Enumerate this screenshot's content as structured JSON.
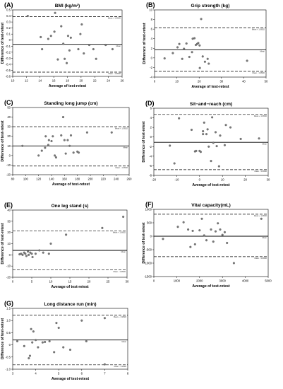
{
  "chart_data": [
    {
      "type": "scatter",
      "panel_label": "(A)",
      "title": "BMI (kg/m²)",
      "xlabel": "Average of test-retest",
      "ylabel": "Difference of test-retest",
      "xlim": [
        10,
        26
      ],
      "ylim": [
        -0.6,
        0.5
      ],
      "xticks": [
        10,
        12,
        14,
        16,
        18,
        20,
        22,
        24,
        26
      ],
      "yticks": [
        -0.6,
        -0.5,
        -0.4,
        -0.3,
        -0.2,
        -0.1,
        0,
        0.1,
        0.2,
        0.3,
        0.4,
        0.5
      ],
      "ytick_labels": [
        "-0.6",
        "-0.5",
        "-0.4",
        "-0.3",
        "-0.2",
        "-0.1",
        "0",
        "0.1",
        "0.2",
        "0.3",
        "0.4",
        "0.5"
      ],
      "mean": -0.07,
      "upper_loa": 0.39,
      "lower_loa": -0.53,
      "line_labels": {
        "mean": "Mean",
        "upper": "Mean + 1.96SD",
        "lower": "Mean - 1.96SD"
      },
      "grid": false,
      "points": [
        [
          12.2,
          0.4
        ],
        [
          14.1,
          0.05
        ],
        [
          14.3,
          -0.15
        ],
        [
          15.2,
          0.02
        ],
        [
          15.6,
          0.07
        ],
        [
          16.1,
          0.14
        ],
        [
          16.2,
          0.45
        ],
        [
          16.6,
          -0.32
        ],
        [
          17.1,
          0.23
        ],
        [
          17.4,
          -0.06
        ],
        [
          17.6,
          -0.31
        ],
        [
          17.9,
          -0.38
        ],
        [
          18.1,
          0.07
        ],
        [
          18.3,
          -0.17
        ],
        [
          18.5,
          0.04
        ],
        [
          19.6,
          -0.15
        ],
        [
          19.9,
          0.1
        ],
        [
          20.1,
          0.26
        ],
        [
          20.4,
          -0.22
        ],
        [
          21.2,
          -0.08
        ],
        [
          21.8,
          -0.15
        ],
        [
          22.2,
          -0.31
        ],
        [
          23.6,
          -0.08
        ],
        [
          24.6,
          -0.15
        ]
      ]
    },
    {
      "type": "scatter",
      "panel_label": "(B)",
      "title": "Grip strength (kg)",
      "xlabel": "Average of test-retest",
      "ylabel": "Difference of test-retest",
      "xlim": [
        0,
        50
      ],
      "ylim": [
        -4,
        10
      ],
      "xticks": [
        0,
        10,
        20,
        30,
        40,
        50
      ],
      "yticks": [
        -4,
        -2,
        0,
        2,
        4,
        6,
        8,
        10
      ],
      "ytick_labels": [
        "-4",
        "-2",
        "0",
        "2",
        "4",
        "6",
        "8",
        "10"
      ],
      "mean": 1.7,
      "upper_loa": 6.3,
      "lower_loa": -2.8,
      "line_labels": {
        "mean": "Mean",
        "upper": "Mean + 1.96SD",
        "lower": "Mean - 1.96SD"
      },
      "grid": false,
      "points": [
        [
          4.5,
          -0.1
        ],
        [
          8.2,
          1.0
        ],
        [
          10.3,
          2.2
        ],
        [
          11.1,
          2.9
        ],
        [
          12.4,
          -0.2
        ],
        [
          13.2,
          1.9
        ],
        [
          14.3,
          3.0
        ],
        [
          15.6,
          0.2
        ],
        [
          16.8,
          1.2
        ],
        [
          17.1,
          4.0
        ],
        [
          17.9,
          4.1
        ],
        [
          18.5,
          2.7
        ],
        [
          19.1,
          2.9
        ],
        [
          19.6,
          3.1
        ],
        [
          20.2,
          2.6
        ],
        [
          20.3,
          -2.1
        ],
        [
          20.9,
          8.1
        ],
        [
          21.6,
          0.3
        ],
        [
          22.6,
          -0.8
        ],
        [
          23.8,
          -0.2
        ],
        [
          24.3,
          -1.2
        ],
        [
          41.5,
          -0.6
        ]
      ]
    },
    {
      "type": "scatter",
      "panel_label": "(C)",
      "title": "Standing long jump (cm)",
      "xlabel": "Average of test-retest",
      "ylabel": "Difference of test-retest",
      "xlim": [
        80,
        260
      ],
      "ylim": [
        -20,
        50
      ],
      "xticks": [
        80,
        100,
        120,
        140,
        160,
        180,
        200,
        220,
        240,
        260
      ],
      "yticks": [
        -20,
        -10,
        0,
        10,
        20,
        30,
        40,
        50
      ],
      "ytick_labels": [
        "-20",
        "-10",
        "0",
        "10",
        "20",
        "30",
        "40",
        "50"
      ],
      "mean": 10,
      "upper_loa": 30,
      "lower_loa": -11,
      "line_labels": {
        "mean": "Mean",
        "upper": "Mean + 1.96SD",
        "lower": "Mean - 1.96SD"
      },
      "grid": false,
      "points": [
        [
          95,
          10
        ],
        [
          120,
          0
        ],
        [
          125,
          5
        ],
        [
          130,
          8
        ],
        [
          131,
          20
        ],
        [
          135,
          11
        ],
        [
          136,
          16
        ],
        [
          140,
          15
        ],
        [
          142,
          20
        ],
        [
          145,
          0
        ],
        [
          147,
          -2
        ],
        [
          155,
          21
        ],
        [
          158,
          40
        ],
        [
          160,
          16
        ],
        [
          162,
          2
        ],
        [
          165,
          16
        ],
        [
          168,
          10
        ],
        [
          170,
          21
        ],
        [
          174,
          3
        ],
        [
          180,
          4
        ],
        [
          182,
          3
        ],
        [
          195,
          24
        ],
        [
          233,
          24
        ]
      ]
    },
    {
      "type": "scatter",
      "panel_label": "(D)",
      "title": "Sit−and−reach (cm)",
      "xlabel": "Average of test-retest",
      "ylabel": "Difference of test-retest",
      "xlim": [
        -20,
        30
      ],
      "ylim": [
        -8,
        6
      ],
      "xticks": [
        -20,
        -10,
        0,
        10,
        20,
        30
      ],
      "yticks": [
        -8,
        -6,
        -4,
        -2,
        0,
        2,
        4,
        6
      ],
      "ytick_labels": [
        "-8",
        "-6",
        "-4",
        "-2",
        "0",
        "2",
        "4",
        "6"
      ],
      "mean": -1.1,
      "upper_loa": 4.7,
      "lower_loa": -6.8,
      "line_labels": {
        "mean": "Mean",
        "upper": "Mean + 1.96SD",
        "lower": "Mean - 1.96SD"
      },
      "grid": false,
      "points": [
        [
          -13,
          -1.8
        ],
        [
          -11,
          -5.5
        ],
        [
          -9,
          3.9
        ],
        [
          -3.5,
          1.5
        ],
        [
          -2,
          -3.0
        ],
        [
          -1.5,
          -2.9
        ],
        [
          0,
          -2.9
        ],
        [
          0.5,
          -3.1
        ],
        [
          1.5,
          0.6
        ],
        [
          1.5,
          1.2
        ],
        [
          2,
          3.0
        ],
        [
          3,
          0.6
        ],
        [
          3.5,
          1.6
        ],
        [
          4,
          -2.0
        ],
        [
          5,
          -5.0
        ],
        [
          5.5,
          4.1
        ],
        [
          6,
          -1.2
        ],
        [
          7,
          1.0
        ],
        [
          7.5,
          -1.9
        ],
        [
          8.5,
          -6.1
        ],
        [
          9,
          0.3
        ],
        [
          11,
          -1.7
        ],
        [
          11.5,
          2.5
        ],
        [
          13.5,
          2.0
        ],
        [
          18,
          -0.4
        ],
        [
          26,
          -0.3
        ]
      ]
    },
    {
      "type": "scatter",
      "panel_label": "(E)",
      "title": "One leg stand (s)",
      "xlabel": "Average of test-retest",
      "ylabel": "Difference of test-retest",
      "xlim": [
        0,
        30
      ],
      "ylim": [
        -20,
        40
      ],
      "xticks": [
        0,
        5,
        10,
        15,
        20,
        25,
        30
      ],
      "yticks": [
        -20,
        -10,
        0,
        10,
        20,
        30,
        40
      ],
      "ytick_labels": [
        "-20",
        "-10",
        "0",
        "10",
        "20",
        "30",
        "40"
      ],
      "mean": 4,
      "upper_loa": 21.5,
      "lower_loa": -13.5,
      "line_labels": {
        "mean": "Mean",
        "upper": "Mean + 1.96SD",
        "lower": "Mean - 1.96SD"
      },
      "grid": false,
      "points": [
        [
          1.8,
          0.5
        ],
        [
          2.2,
          1
        ],
        [
          2.6,
          0
        ],
        [
          3.0,
          2
        ],
        [
          3.3,
          1
        ],
        [
          3.6,
          -1
        ],
        [
          4.0,
          3
        ],
        [
          4.2,
          0
        ],
        [
          4.6,
          2
        ],
        [
          5.0,
          1
        ],
        [
          5.2,
          -2
        ],
        [
          6.0,
          1
        ],
        [
          7.0,
          4
        ],
        [
          8.0,
          2
        ],
        [
          9.5,
          1
        ],
        [
          10,
          10
        ],
        [
          14,
          18
        ],
        [
          23.5,
          24
        ],
        [
          29,
          34
        ]
      ]
    },
    {
      "type": "scatter",
      "panel_label": "(F)",
      "title": "Vital capacity(mL)",
      "xlabel": "Average of test-retest",
      "ylabel": "Difference of test-retest",
      "xlim": [
        0,
        5000
      ],
      "ylim": [
        -1500,
        1000
      ],
      "xticks": [
        0,
        1000,
        2000,
        3000,
        4000,
        5000
      ],
      "yticks": [
        -1500,
        -1000,
        -500,
        0,
        500,
        1000
      ],
      "ytick_labels": [
        "-1500",
        "-1000",
        "-500",
        "0",
        "500",
        "1000"
      ],
      "mean": 0,
      "upper_loa": 820,
      "lower_loa": -760,
      "line_labels": {
        "mean": "Mean",
        "upper": "Mean + 1.96SD",
        "lower": "Mean - 1.96SD"
      },
      "grid": false,
      "points": [
        [
          400,
          -100
        ],
        [
          1050,
          350
        ],
        [
          1300,
          520
        ],
        [
          1500,
          250
        ],
        [
          1600,
          -400
        ],
        [
          1700,
          200
        ],
        [
          1800,
          -300
        ],
        [
          2000,
          220
        ],
        [
          2100,
          650
        ],
        [
          2200,
          30
        ],
        [
          2300,
          -150
        ],
        [
          2500,
          250
        ],
        [
          2600,
          -200
        ],
        [
          2700,
          180
        ],
        [
          2800,
          480
        ],
        [
          2900,
          250
        ],
        [
          3000,
          50
        ],
        [
          3100,
          150
        ],
        [
          3200,
          -250
        ],
        [
          3500,
          -1000
        ],
        [
          4700,
          650
        ]
      ]
    },
    {
      "type": "scatter",
      "panel_label": "(G)",
      "title": "Long distance run (min)",
      "xlabel": "Average of test-retest",
      "ylabel": "Difference of test-retest",
      "xlim": [
        3,
        8
      ],
      "ylim": [
        -1.0,
        1.5
      ],
      "xticks": [
        3,
        4,
        5,
        6,
        7,
        8
      ],
      "yticks": [
        -1.0,
        -0.5,
        0,
        0.5,
        1.0,
        1.5
      ],
      "ytick_labels": [
        "-1.0",
        "-0.5",
        "0",
        "0.5",
        "1.0",
        "1.5"
      ],
      "mean": 0.2,
      "upper_loa": 1.22,
      "lower_loa": -0.82,
      "line_labels": {
        "mean": "Mean",
        "upper": "Mean + 1.96SD",
        "lower": "Mean - 1.96SD"
      },
      "grid": false,
      "points": [
        [
          3.2,
          0.15
        ],
        [
          3.5,
          -0.05
        ],
        [
          3.7,
          -0.55
        ],
        [
          3.75,
          -0.45
        ],
        [
          3.8,
          0.65
        ],
        [
          3.85,
          0.1
        ],
        [
          3.9,
          0.55
        ],
        [
          4.0,
          0.2
        ],
        [
          4.1,
          -0.1
        ],
        [
          4.3,
          0.1
        ],
        [
          4.4,
          0.12
        ],
        [
          4.6,
          0.15
        ],
        [
          4.8,
          -0.3
        ],
        [
          4.9,
          0.9
        ],
        [
          5.0,
          0.7
        ],
        [
          5.2,
          -0.1
        ],
        [
          5.5,
          -0.2
        ],
        [
          6.0,
          1.0
        ],
        [
          6.2,
          0.15
        ],
        [
          7.0,
          1.1
        ],
        [
          7.0,
          -0.8
        ]
      ]
    }
  ]
}
